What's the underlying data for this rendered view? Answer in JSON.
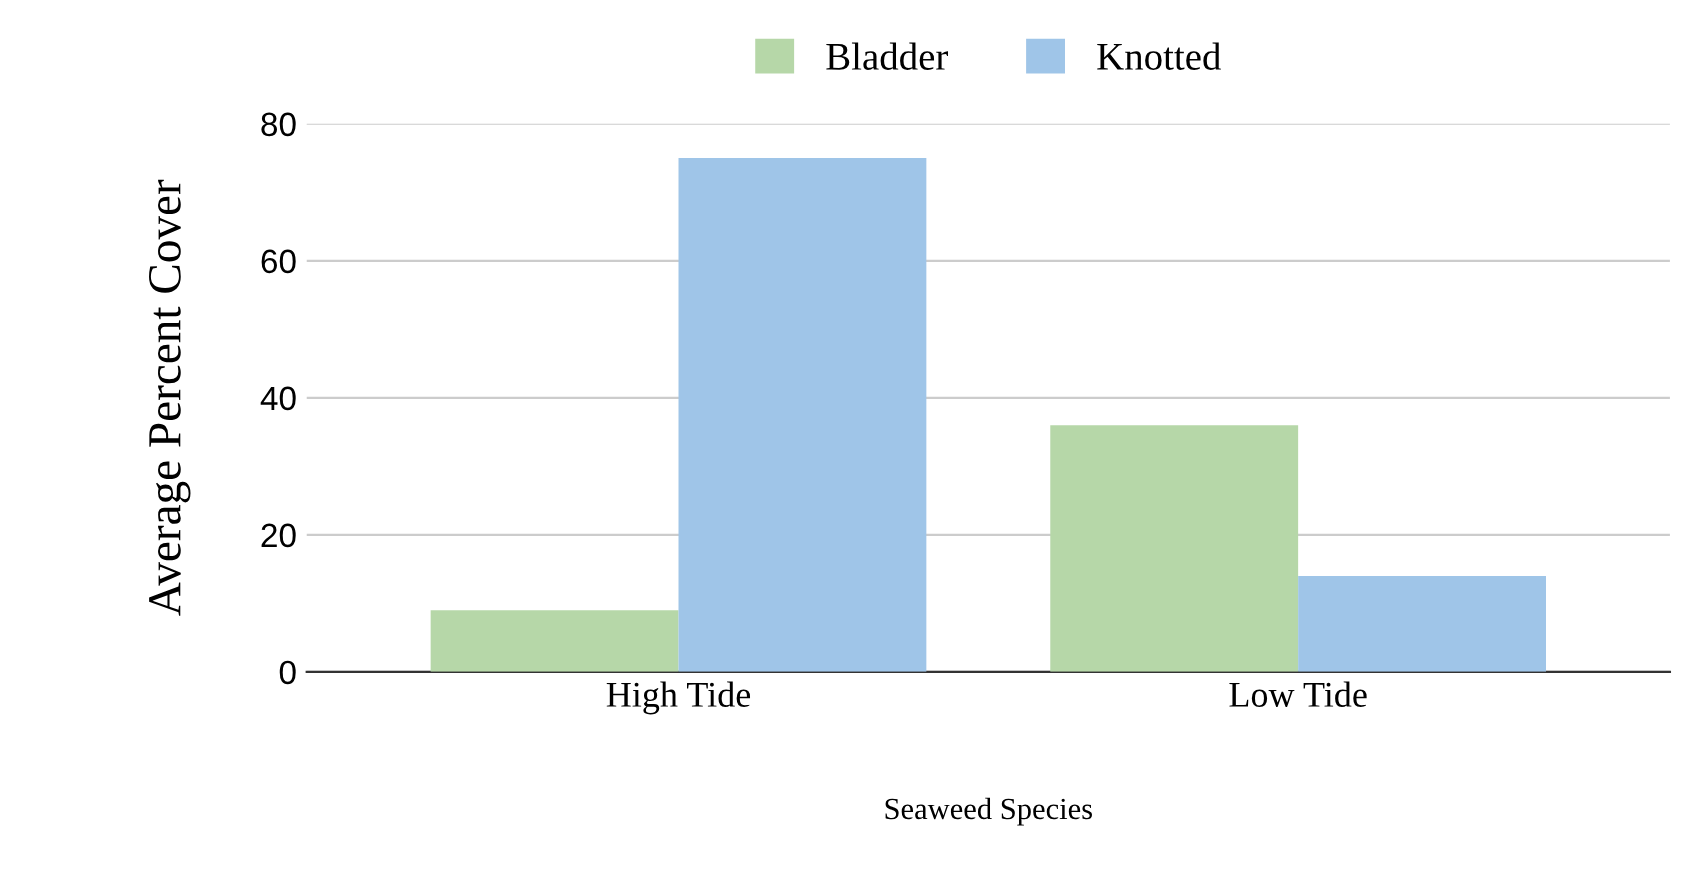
{
  "chart_data": {
    "type": "bar",
    "xlabel": "Seaweed Species",
    "ylabel": "Average Percent Cover",
    "categories": [
      "High Tide",
      "Low Tide"
    ],
    "series": [
      {
        "name": "Bladder",
        "color": "#b6d7a8",
        "values": [
          9,
          36
        ]
      },
      {
        "name": "Knotted",
        "color": "#9fc5e8",
        "values": [
          75,
          14
        ]
      }
    ],
    "ylim": [
      0,
      80
    ],
    "yticks": [
      0,
      20,
      40,
      60,
      80
    ],
    "grid": "y",
    "legend": "top"
  }
}
